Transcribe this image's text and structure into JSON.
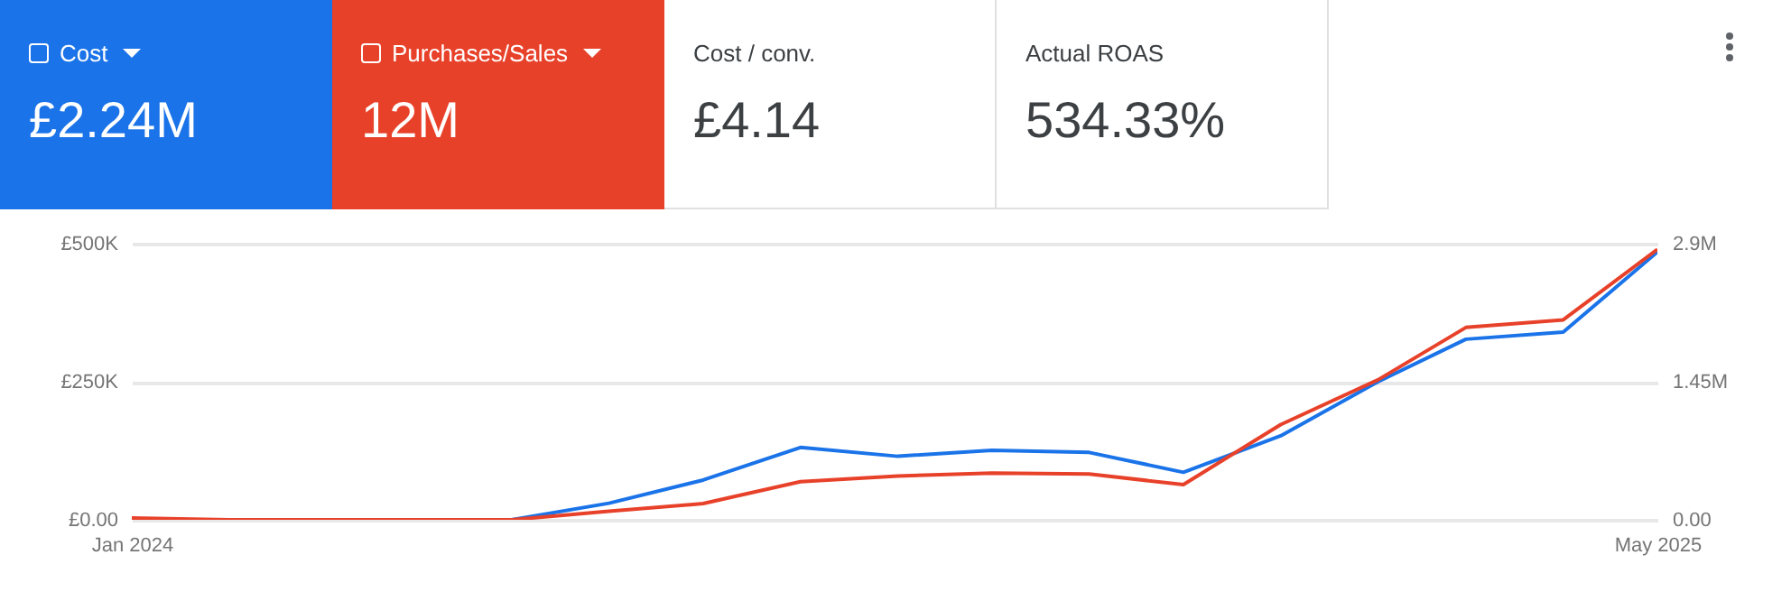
{
  "chart_data": {
    "type": "line",
    "x": [
      "2024-01",
      "2024-02",
      "2024-03",
      "2024-04",
      "2024-05",
      "2024-06",
      "2024-07",
      "2024-08",
      "2024-09",
      "2024-10",
      "2024-11",
      "2024-12",
      "2025-01",
      "2025-02",
      "2025-03",
      "2025-04",
      "2025-05"
    ],
    "xlim": [
      "2024-01",
      "2025-05"
    ],
    "xticks": [
      {
        "value": "2024-01",
        "label": "Jan 2024"
      },
      {
        "value": "2025-05",
        "label": "May 2025"
      }
    ],
    "series": [
      {
        "name": "Cost",
        "color": "#1a73e8",
        "values": [
          null,
          null,
          null,
          0,
          0,
          30000,
          72000,
          131000,
          115000,
          126000,
          122000,
          86000,
          152000,
          250000,
          327000,
          340000,
          485000
        ]
      },
      {
        "name": "Purchases/Sales",
        "color": "#e8412a",
        "axis": "y2",
        "values": [
          20000,
          0,
          0,
          0,
          0,
          90000,
          170000,
          400000,
          460000,
          490000,
          480000,
          370000,
          1000000,
          1470000,
          2020000,
          2100000,
          2840000
        ]
      }
    ],
    "ylim": [
      0,
      500000
    ],
    "yticks": [
      {
        "value": 0,
        "label": "£0.00"
      },
      {
        "value": 250000,
        "label": "£250K"
      },
      {
        "value": 500000,
        "label": "£500K"
      }
    ],
    "y2lim": [
      0,
      2900000
    ],
    "y2ticks": [
      {
        "value": 0,
        "label": "0.00"
      },
      {
        "value": 1450000,
        "label": "1.45M"
      },
      {
        "value": 2900000,
        "label": "2.9M"
      }
    ],
    "annotations": [
      "£2.24M",
      "12M",
      "Cost / conv.",
      "£4.14",
      "Actual ROAS",
      "534.33%"
    ],
    "grid": "y",
    "legend": "top left",
    "marker": "none",
    "line_style": "solid"
  }
}
